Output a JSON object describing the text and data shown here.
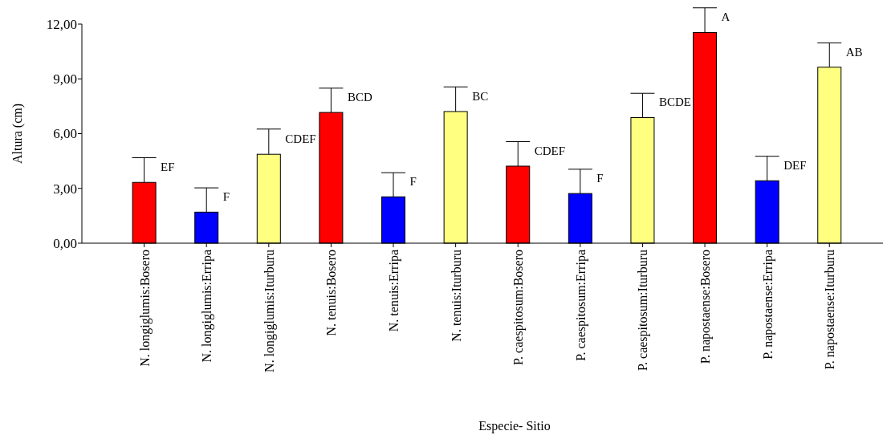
{
  "chart_data": {
    "type": "bar",
    "xlabel": "Especie- Sitio",
    "ylabel": "Altura (cm)",
    "categories": [
      "N. longiglumis:Bosero",
      "N. longiglumis:Erripa",
      "N. longiglumis:Iturburu",
      "N. tenuis:Bosero",
      "N. tenuis:Erripa",
      "N. tenuis:Iturburu",
      "P. caespitosum:Bosero",
      "P. caespitosum:Erripa",
      "P. caespitosum:Iturburu",
      "P. napostaense:Bosero",
      "P. napostaense:Erripa",
      "P. napostaense:Iturburu"
    ],
    "values": [
      3.33,
      1.7,
      4.87,
      7.16,
      2.54,
      7.21,
      4.22,
      2.72,
      6.88,
      11.54,
      3.42,
      9.64
    ],
    "colors": [
      "#ff0000",
      "#0000ff",
      "#ffff80",
      "#ff0000",
      "#0000ff",
      "#ffff80",
      "#ff0000",
      "#0000ff",
      "#ffff80",
      "#ff0000",
      "#0000ff",
      "#ffff80"
    ],
    "errors": [
      [
        3.33,
        4.68
      ],
      [
        1.7,
        3.03
      ],
      [
        4.87,
        6.25
      ],
      [
        7.16,
        8.49
      ],
      [
        2.54,
        3.86
      ],
      [
        7.21,
        8.56
      ],
      [
        4.22,
        5.56
      ],
      [
        2.72,
        4.05
      ],
      [
        6.88,
        8.21
      ],
      [
        11.54,
        12.89
      ],
      [
        3.42,
        4.76
      ],
      [
        9.64,
        10.97
      ]
    ],
    "ylim": [
      0,
      12
    ],
    "yticks": [
      {
        "value": 0,
        "label": "0,00"
      },
      {
        "value": 3,
        "label": "3,00"
      },
      {
        "value": 6,
        "label": "6,00"
      },
      {
        "value": 9,
        "label": "9,00"
      },
      {
        "value": 12,
        "label": "12,00"
      }
    ],
    "annotations": [
      {
        "text": "EF",
        "x": "N. longiglumis:Bosero",
        "y": 3.33
      },
      {
        "text": "F",
        "x": "N. longiglumis:Erripa",
        "y": 1.7
      },
      {
        "text": "CDEF",
        "x": "N. longiglumis:Iturburu",
        "y": 4.87
      },
      {
        "text": "BCD",
        "x": "N. tenuis:Bosero",
        "y": 7.16
      },
      {
        "text": "F",
        "x": "N. tenuis:Erripa",
        "y": 2.54
      },
      {
        "text": "BC",
        "x": "N. tenuis:Iturburu",
        "y": 7.21
      },
      {
        "text": "CDEF",
        "x": "P. caespitosum:Bosero",
        "y": 4.22
      },
      {
        "text": "F",
        "x": "P. caespitosum:Erripa",
        "y": 2.72
      },
      {
        "text": "BCDE",
        "x": "P. caespitosum:Iturburu",
        "y": 6.88
      },
      {
        "text": "A",
        "x": "P. napostaense:Bosero",
        "y": 11.54
      },
      {
        "text": "DEF",
        "x": "P. napostaense:Erripa",
        "y": 3.42
      },
      {
        "text": "AB",
        "x": "P. napostaense:Iturburu",
        "y": 9.64
      }
    ],
    "grid": false
  }
}
